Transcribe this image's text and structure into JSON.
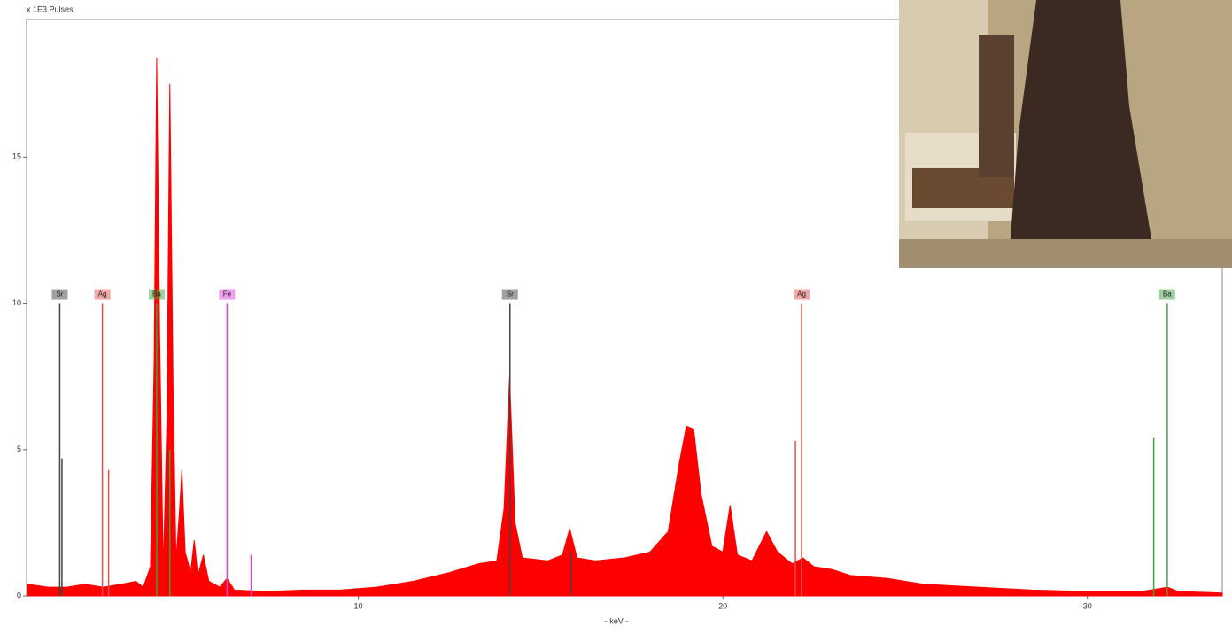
{
  "chart_data": {
    "type": "area",
    "y_unit_label": "x 1E3 Pulses",
    "x_label": "- keV -",
    "xlim": [
      0.9,
      33.7
    ],
    "ylim": [
      0,
      19.7
    ],
    "xticks": [
      10,
      20,
      30
    ],
    "yticks": [
      0,
      5,
      10,
      15
    ],
    "color": "#ff0000",
    "x": [
      0.93,
      1.5,
      2.0,
      2.5,
      3.0,
      3.5,
      3.9,
      4.1,
      4.3,
      4.4,
      4.47,
      4.55,
      4.65,
      4.75,
      4.83,
      4.92,
      5.0,
      5.1,
      5.16,
      5.25,
      5.4,
      5.5,
      5.6,
      5.75,
      5.9,
      6.2,
      6.4,
      6.6,
      7.5,
      8.5,
      9.5,
      10.5,
      11.5,
      12.5,
      13.3,
      13.8,
      14.0,
      14.15,
      14.3,
      14.5,
      15.2,
      15.6,
      15.8,
      16.0,
      16.5,
      17.3,
      18.0,
      18.5,
      18.8,
      19.0,
      19.2,
      19.4,
      19.7,
      20.0,
      20.2,
      20.4,
      20.8,
      21.2,
      21.5,
      21.9,
      22.2,
      22.5,
      23.0,
      23.5,
      24.5,
      25.5,
      27,
      28.5,
      30,
      31.5,
      32.2,
      32.5,
      33.7
    ],
    "values": [
      0.4,
      0.3,
      0.3,
      0.4,
      0.3,
      0.4,
      0.5,
      0.3,
      1.0,
      8,
      18.4,
      9,
      0.8,
      6,
      17.5,
      7,
      1.2,
      3,
      4.3,
      1.5,
      0.8,
      1.9,
      0.7,
      1.4,
      0.5,
      0.3,
      0.6,
      0.2,
      0.15,
      0.2,
      0.2,
      0.3,
      0.5,
      0.8,
      1.1,
      1.2,
      3,
      7.5,
      2.5,
      1.3,
      1.2,
      1.4,
      2.3,
      1.3,
      1.2,
      1.3,
      1.5,
      2.2,
      4.5,
      5.8,
      5.7,
      3.5,
      1.7,
      1.5,
      3.1,
      1.4,
      1.2,
      2.2,
      1.5,
      1.1,
      1.3,
      1.0,
      0.9,
      0.7,
      0.6,
      0.4,
      0.3,
      0.2,
      0.15,
      0.15,
      0.3,
      0.15,
      0.1
    ],
    "markers": [
      {
        "label": "Sr",
        "color": "#444444",
        "energies": [
          1.81,
          1.87
        ],
        "heights": [
          10,
          4.7
        ]
      },
      {
        "label": "Ag",
        "color": "#e05050",
        "energies": [
          2.98,
          3.15
        ],
        "heights": [
          10,
          4.3
        ]
      },
      {
        "label": "Ba",
        "color": "#40a040",
        "energies": [
          4.47,
          4.83
        ],
        "heights": [
          10,
          5
        ]
      },
      {
        "label": "Fe",
        "color": "#e040e0",
        "energies": [
          6.4,
          7.06
        ],
        "heights": [
          10,
          1.4
        ]
      },
      {
        "label": "Sr",
        "color": "#444444",
        "energies": [
          14.16,
          15.84
        ],
        "heights": [
          10,
          1.5
        ]
      },
      {
        "label": "Ag",
        "color": "#e05050",
        "energies": [
          22.16,
          21.99
        ],
        "heights": [
          10,
          5.3
        ]
      },
      {
        "label": "Ba",
        "color": "#40a040",
        "energies": [
          32.19,
          31.82
        ],
        "heights": [
          10,
          5.4
        ]
      }
    ]
  }
}
